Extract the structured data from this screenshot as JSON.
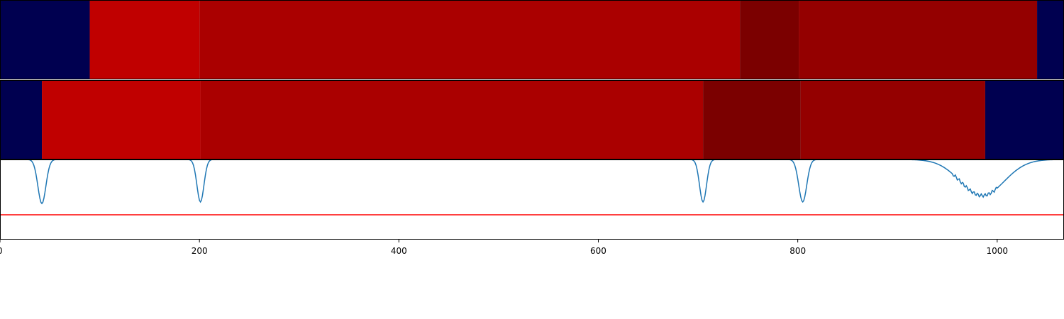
{
  "chart_data": {
    "type": "heatmap",
    "title": "",
    "xlabel": "",
    "ylabel": "",
    "xlim": [
      0,
      1067
    ],
    "xticks": [
      {
        "value": 0,
        "label": "0"
      },
      {
        "value": 200,
        "label": "200"
      },
      {
        "value": 400,
        "label": "400"
      },
      {
        "value": 600,
        "label": "600"
      },
      {
        "value": 800,
        "label": "800"
      },
      {
        "value": 1000,
        "label": "1000"
      }
    ],
    "rows": [
      {
        "segments": [
          {
            "x0": 0,
            "x1": 90,
            "color": "#000050"
          },
          {
            "x0": 90,
            "x1": 200,
            "color": "#c00000"
          },
          {
            "x0": 200,
            "x1": 742,
            "color": "#aa0000"
          },
          {
            "x0": 742,
            "x1": 801,
            "color": "#7b0000"
          },
          {
            "x0": 801,
            "x1": 1040,
            "color": "#940000"
          },
          {
            "x0": 1040,
            "x1": 1067,
            "color": "#000050"
          }
        ]
      },
      {
        "segments": [
          {
            "x0": 0,
            "x1": 42,
            "color": "#000050"
          },
          {
            "x0": 42,
            "x1": 201,
            "color": "#c00000"
          },
          {
            "x0": 201,
            "x1": 705,
            "color": "#aa0000"
          },
          {
            "x0": 705,
            "x1": 803,
            "color": "#7b0000"
          },
          {
            "x0": 803,
            "x1": 988,
            "color": "#940000"
          },
          {
            "x0": 988,
            "x1": 1067,
            "color": "#000050"
          }
        ]
      }
    ],
    "line_panel": {
      "ylim": [
        0,
        1
      ],
      "line_color": "#1f77b4",
      "threshold": 0.31,
      "threshold_color": "#ff0000",
      "baseline": 1.0,
      "dips": [
        {
          "center": 42,
          "depth": 0.55,
          "width": 4
        },
        {
          "center": 201,
          "depth": 0.53,
          "width": 3.5
        },
        {
          "center": 705,
          "depth": 0.53,
          "width": 3.5
        },
        {
          "center": 805,
          "depth": 0.53,
          "width": 4
        },
        {
          "center": 985,
          "depth": 0.45,
          "width": 22
        }
      ]
    }
  }
}
